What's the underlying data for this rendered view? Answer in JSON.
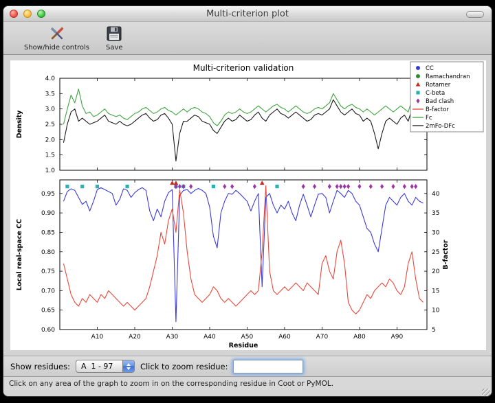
{
  "window": {
    "title": "Multi-criterion plot"
  },
  "toolbar": {
    "items": [
      {
        "label": "Show/hide controls"
      },
      {
        "label": "Save"
      }
    ]
  },
  "controls": {
    "show_residues_label": "Show residues:",
    "residue_range_value": "A  1 - 97",
    "zoom_label": "Click to zoom residue:",
    "zoom_input_value": ""
  },
  "statusbar": {
    "text": "Click on any area of the graph to zoom in on the corresponding residue in Coot or PyMOL."
  },
  "chart_data": {
    "type": "line",
    "title": "Multi-criterion validation",
    "xlabel": "Residue",
    "xlim": [
      0,
      98
    ],
    "residue_range": "A 1 - 97",
    "xticks": [
      10,
      20,
      30,
      40,
      50,
      60,
      70,
      80,
      90
    ],
    "xtick_labels": [
      "A10",
      "A20",
      "A30",
      "A40",
      "A50",
      "A60",
      "A70",
      "A80",
      "A90"
    ],
    "top_plot": {
      "ylabel": "Density",
      "ylim": [
        1.0,
        4.0
      ],
      "yticks": [
        1.0,
        1.5,
        2.0,
        2.5,
        3.0,
        3.5,
        4.0
      ],
      "series": [
        {
          "name": "Fc",
          "color": "#3fa43f",
          "values": [
            2.5,
            3.0,
            3.45,
            3.2,
            3.65,
            3.1,
            2.85,
            2.9,
            2.75,
            2.8,
            2.9,
            3.0,
            2.85,
            2.8,
            2.75,
            2.8,
            2.7,
            2.65,
            2.75,
            2.85,
            2.9,
            3.0,
            3.05,
            2.95,
            2.85,
            2.9,
            3.0,
            3.05,
            2.95,
            2.9,
            2.8,
            2.9,
            3.0,
            2.9,
            3.0,
            3.05,
            3.0,
            2.9,
            2.85,
            2.75,
            2.55,
            2.45,
            2.6,
            2.8,
            2.9,
            2.85,
            2.9,
            3.0,
            2.9,
            2.85,
            2.9,
            3.0,
            3.1,
            3.0,
            2.9,
            3.0,
            3.1,
            3.15,
            3.05,
            3.0,
            2.9,
            3.0,
            3.1,
            3.0,
            2.9,
            2.85,
            2.9,
            3.0,
            3.05,
            3.0,
            3.1,
            3.2,
            3.5,
            3.3,
            3.1,
            3.0,
            3.1,
            3.15,
            3.05,
            3.0,
            2.9,
            3.0,
            2.9,
            2.8,
            2.9,
            3.0,
            3.1,
            3.0,
            2.9,
            3.0,
            3.1,
            3.0,
            2.9,
            3.3,
            3.15,
            3.4,
            3.0
          ]
        },
        {
          "name": "2mFo-DFc",
          "color": "#1a1a1a",
          "values": [
            1.9,
            2.5,
            2.9,
            3.0,
            2.6,
            2.7,
            2.6,
            2.5,
            2.55,
            2.6,
            2.7,
            2.8,
            2.6,
            2.55,
            2.5,
            2.6,
            2.5,
            2.45,
            2.5,
            2.6,
            2.7,
            2.8,
            2.85,
            2.7,
            2.6,
            2.65,
            2.8,
            2.85,
            2.7,
            2.5,
            1.3,
            2.2,
            2.6,
            2.6,
            2.7,
            2.8,
            2.75,
            2.6,
            2.55,
            2.5,
            2.3,
            2.2,
            2.4,
            2.6,
            2.7,
            2.6,
            2.65,
            2.8,
            2.7,
            2.6,
            2.65,
            2.8,
            2.9,
            2.7,
            2.6,
            2.8,
            2.9,
            3.0,
            2.85,
            2.8,
            2.7,
            2.8,
            2.9,
            2.8,
            2.7,
            2.6,
            2.65,
            2.8,
            2.85,
            2.8,
            2.9,
            3.0,
            3.3,
            3.1,
            2.9,
            2.8,
            2.9,
            3.0,
            2.85,
            2.8,
            2.6,
            2.7,
            2.6,
            2.2,
            1.7,
            2.2,
            2.6,
            2.7,
            2.6,
            2.5,
            2.7,
            2.8,
            2.6,
            3.0,
            2.9,
            3.1,
            2.8
          ]
        }
      ]
    },
    "bottom_plot": {
      "ylabel_left": "Local real-space CC",
      "ylabel_right": "B-factor",
      "ylim_left": [
        0.6,
        0.985
      ],
      "ylim_right": [
        5,
        43.5
      ],
      "yticks_left": [
        0.6,
        0.65,
        0.7,
        0.75,
        0.8,
        0.85,
        0.9,
        0.95
      ],
      "yticks_right": [
        5,
        10,
        15,
        20,
        25,
        30,
        35,
        40
      ],
      "series": [
        {
          "name": "CC",
          "axis": "left",
          "color": "#3b3bd6",
          "values": [
            0.93,
            0.955,
            0.962,
            0.958,
            0.94,
            0.922,
            0.93,
            0.905,
            0.93,
            0.96,
            0.965,
            0.96,
            0.955,
            0.95,
            0.92,
            0.935,
            0.962,
            0.958,
            0.94,
            0.952,
            0.96,
            0.965,
            0.958,
            0.905,
            0.88,
            0.91,
            0.89,
            0.93,
            0.952,
            0.96,
            0.62,
            0.945,
            0.958,
            0.96,
            0.95,
            0.958,
            0.963,
            0.958,
            0.95,
            0.915,
            0.84,
            0.81,
            0.9,
            0.93,
            0.95,
            0.948,
            0.958,
            0.95,
            0.94,
            0.93,
            0.905,
            0.93,
            0.95,
            0.71,
            0.94,
            0.95,
            0.92,
            0.9,
            0.92,
            0.91,
            0.93,
            0.9,
            0.88,
            0.92,
            0.948,
            0.92,
            0.89,
            0.92,
            0.948,
            0.95,
            0.94,
            0.9,
            0.93,
            0.958,
            0.95,
            0.94,
            0.958,
            0.95,
            0.93,
            0.92,
            0.89,
            0.86,
            0.85,
            0.82,
            0.8,
            0.86,
            0.92,
            0.94,
            0.93,
            0.92,
            0.94,
            0.95,
            0.93,
            0.92,
            0.94,
            0.93,
            0.925
          ]
        },
        {
          "name": "B-factor",
          "axis": "right",
          "color": "#e8473b",
          "values": [
            22,
            18,
            14,
            12,
            11,
            13,
            12,
            14,
            13,
            12,
            14,
            13,
            15,
            14,
            13,
            12,
            11,
            12,
            11,
            10,
            11,
            12,
            13,
            16,
            20,
            24,
            30,
            27,
            33,
            36,
            30,
            41,
            35,
            25,
            18,
            14,
            13,
            12,
            13,
            14,
            16,
            15,
            13,
            12,
            13,
            12,
            11,
            12,
            13,
            14,
            15,
            14,
            15,
            25,
            42,
            20,
            15,
            14,
            15,
            16,
            15,
            16,
            17,
            16,
            15,
            17,
            16,
            15,
            14,
            22,
            24,
            20,
            18,
            25,
            28,
            22,
            12,
            10,
            9,
            10,
            12,
            14,
            13,
            15,
            16,
            17,
            16,
            18,
            17,
            15,
            14,
            16,
            22,
            25,
            18,
            13,
            12
          ]
        }
      ],
      "outlier_markers": [
        {
          "name": "Rotamer",
          "shape": "triangle",
          "color": "#cc291c",
          "y": 0.977,
          "x": [
            30,
            31,
            54
          ]
        },
        {
          "name": "C-beta",
          "shape": "square",
          "color": "#2ab2b2",
          "y": 0.968,
          "x": [
            2,
            6,
            10,
            18,
            31,
            33,
            41,
            58
          ]
        },
        {
          "name": "Bad clash",
          "shape": "diamond",
          "color": "#9c35a5",
          "y": 0.968,
          "x": [
            31,
            32,
            33,
            35,
            44,
            46,
            52,
            65,
            68,
            72,
            74,
            75,
            76,
            77,
            80,
            83,
            86,
            89,
            92,
            94,
            95
          ]
        },
        {
          "name": "Ramachandran",
          "shape": "circle",
          "color": "#2e8b2e",
          "y": 0.968,
          "x": []
        }
      ]
    },
    "legend": {
      "position": "upper right",
      "entries": [
        {
          "label": "CC",
          "marker": "circle",
          "color": "#3b3bd6"
        },
        {
          "label": "Ramachandran",
          "marker": "circle",
          "color": "#2e8b2e"
        },
        {
          "label": "Rotamer",
          "marker": "triangle",
          "color": "#cc291c"
        },
        {
          "label": "C-beta",
          "marker": "square",
          "color": "#2ab2b2"
        },
        {
          "label": "Bad clash",
          "marker": "diamond",
          "color": "#9c35a5"
        },
        {
          "label": "B-factor",
          "marker": "line",
          "color": "#e8473b"
        },
        {
          "label": "Fc",
          "marker": "line",
          "color": "#3fa43f"
        },
        {
          "label": "2mFo-DFc",
          "marker": "line",
          "color": "#1a1a1a"
        }
      ]
    }
  }
}
